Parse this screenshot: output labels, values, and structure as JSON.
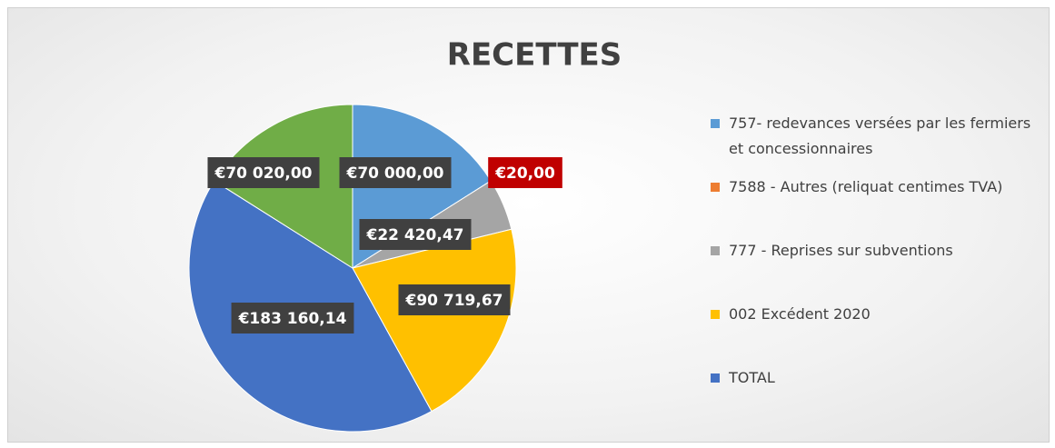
{
  "chart_data": {
    "type": "pie",
    "title": "RECETTES",
    "categories": [
      "757- redevances versées par les fermiers et concessionnaires",
      "7588 - Autres (reliquat centimes TVA)",
      "777 - Reprises sur subventions",
      "002 Excédent 2020",
      "TOTAL",
      null
    ],
    "values": [
      70000,
      20,
      22420.47,
      90719.67,
      183160.14,
      70020
    ],
    "value_labels": [
      "€70 000,00",
      "€20,00",
      "€22 420,47",
      "€90 719,67",
      "€183 160,14",
      "€70 020,00"
    ],
    "colors": [
      "#5b9bd5",
      "#ed7d31",
      "#a5a5a5",
      "#ffc000",
      "#4472c4",
      "#70ad47"
    ],
    "legend": "right"
  }
}
